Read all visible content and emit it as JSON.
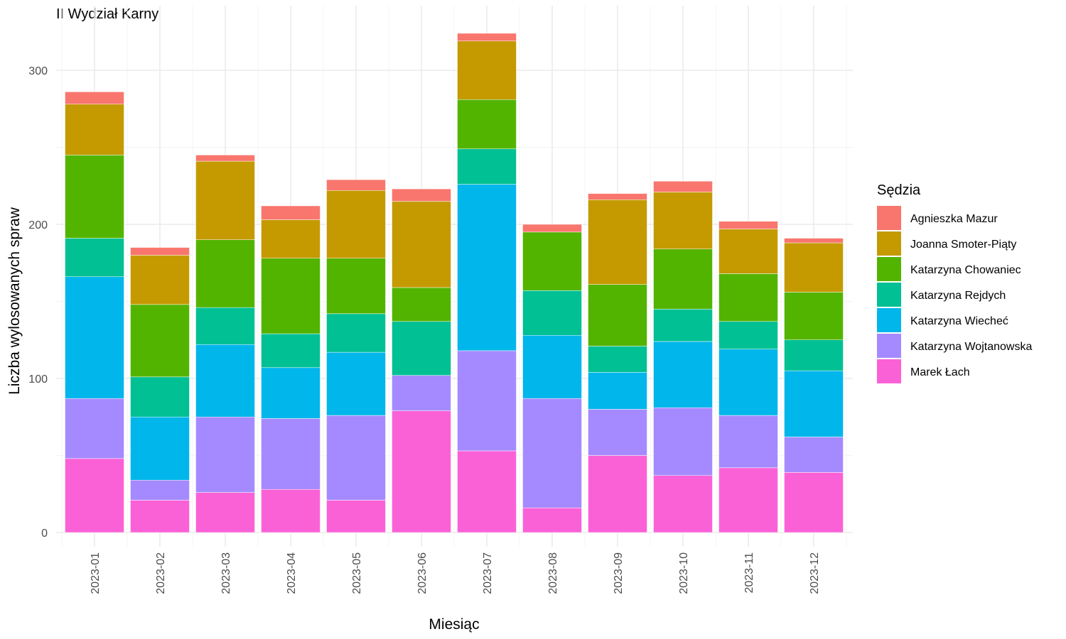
{
  "chart_data": {
    "type": "bar",
    "stacked": true,
    "title": "II Wydział Karny",
    "xlabel": "Miesiąc",
    "ylabel": "Liczba wylosowanych spraw",
    "ylim": [
      0,
      325
    ],
    "yticks": [
      0,
      100,
      200,
      300
    ],
    "grid": true,
    "legend_title": "Sędzia",
    "legend_position": "right",
    "categories": [
      "2023-01",
      "2023-02",
      "2023-03",
      "2023-04",
      "2023-05",
      "2023-06",
      "2023-07",
      "2023-08",
      "2023-09",
      "2023-10",
      "2023-11",
      "2023-12"
    ],
    "series": [
      {
        "name": "Agnieszka Mazur",
        "color": "#F8766D",
        "values": [
          8,
          5,
          4,
          9,
          7,
          8,
          5,
          5,
          4,
          7,
          5,
          3
        ]
      },
      {
        "name": "Joanna Smoter-Piąty",
        "color": "#C49A00",
        "values": [
          33,
          32,
          51,
          25,
          44,
          56,
          38,
          0,
          55,
          37,
          29,
          32
        ]
      },
      {
        "name": "Katarzyna Chowaniec",
        "color": "#53B400",
        "values": [
          54,
          47,
          44,
          49,
          36,
          22,
          32,
          38,
          40,
          39,
          31,
          31
        ]
      },
      {
        "name": "Katarzyna Rejdych",
        "color": "#00C094",
        "values": [
          25,
          26,
          24,
          22,
          25,
          35,
          23,
          29,
          17,
          21,
          18,
          20
        ]
      },
      {
        "name": "Katarzyna Wiecheć",
        "color": "#00B6EB",
        "values": [
          79,
          41,
          47,
          33,
          41,
          0,
          108,
          41,
          24,
          43,
          43,
          43
        ]
      },
      {
        "name": "Katarzyna Wojtanowska",
        "color": "#A58AFF",
        "values": [
          39,
          13,
          49,
          46,
          55,
          23,
          65,
          71,
          30,
          44,
          34,
          23
        ]
      },
      {
        "name": "Marek Łach",
        "color": "#FB61D7",
        "values": [
          48,
          21,
          26,
          28,
          21,
          79,
          53,
          16,
          50,
          37,
          42,
          39
        ]
      }
    ]
  }
}
